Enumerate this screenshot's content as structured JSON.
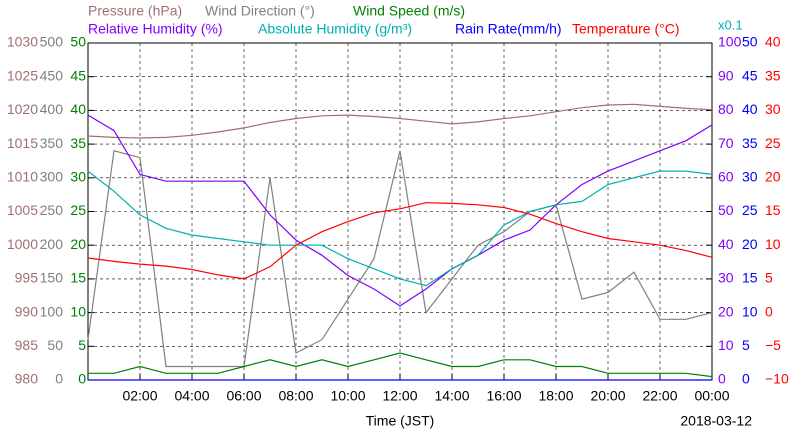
{
  "chart_data": {
    "type": "line",
    "xlabel": "Time (JST)",
    "date_label": "2018-03-12",
    "annotation": "x0.1",
    "annotation_color": "#00b0b0",
    "grid": true,
    "x": [
      0,
      1,
      2,
      3,
      4,
      5,
      6,
      7,
      8,
      9,
      10,
      11,
      12,
      13,
      14,
      15,
      16,
      17,
      18,
      19,
      20,
      21,
      22,
      23,
      24
    ],
    "xlim": [
      0,
      24
    ],
    "xticks": [
      {
        "value": 2,
        "label": "02:00"
      },
      {
        "value": 4,
        "label": "04:00"
      },
      {
        "value": 6,
        "label": "06:00"
      },
      {
        "value": 8,
        "label": "08:00"
      },
      {
        "value": 10,
        "label": "10:00"
      },
      {
        "value": 12,
        "label": "12:00"
      },
      {
        "value": 14,
        "label": "14:00"
      },
      {
        "value": 16,
        "label": "16:00"
      },
      {
        "value": 18,
        "label": "18:00"
      },
      {
        "value": 20,
        "label": "20:00"
      },
      {
        "value": 22,
        "label": "22:00"
      },
      {
        "value": 24,
        "label": "00:00"
      }
    ],
    "axes": [
      {
        "side": "left",
        "color": "#a07070",
        "lim": [
          980,
          1030
        ],
        "ticks": [
          980,
          985,
          990,
          995,
          1000,
          1005,
          1010,
          1015,
          1020,
          1025,
          1030
        ]
      },
      {
        "side": "left",
        "color": "#808080",
        "lim": [
          0,
          500
        ],
        "ticks": [
          0,
          50,
          100,
          150,
          200,
          250,
          300,
          350,
          400,
          450,
          500
        ]
      },
      {
        "side": "left",
        "color": "#008000",
        "lim": [
          0,
          50
        ],
        "ticks": [
          0,
          5,
          10,
          15,
          20,
          25,
          30,
          35,
          40,
          45,
          50
        ]
      },
      {
        "side": "right",
        "color": "#8000ff",
        "lim": [
          0,
          100
        ],
        "ticks": [
          0,
          10,
          20,
          30,
          40,
          50,
          60,
          70,
          80,
          90,
          100
        ]
      },
      {
        "side": "right",
        "color": "#0000ff",
        "lim": [
          0,
          50
        ],
        "ticks": [
          0,
          5,
          10,
          15,
          20,
          25,
          30,
          35,
          40,
          45,
          50
        ]
      },
      {
        "side": "right",
        "color": "#ff0000",
        "lim": [
          -10,
          40
        ],
        "ticks": [
          {
            "value": -10,
            "label": "−10"
          },
          {
            "value": -5,
            "label": "−5"
          },
          0,
          5,
          10,
          15,
          20,
          25,
          30,
          35,
          40
        ]
      },
      {
        "side": "none",
        "color": "#00b0b0",
        "lim": [
          0,
          10
        ]
      }
    ],
    "series": [
      {
        "name": "Pressure (hPa)",
        "color": "#a07070",
        "axis": 0,
        "values": [
          1016.2,
          1016,
          1015.9,
          1016,
          1016.3,
          1016.8,
          1017.4,
          1018.2,
          1018.8,
          1019.2,
          1019.3,
          1019.1,
          1018.8,
          1018.4,
          1018,
          1018.3,
          1018.8,
          1019.2,
          1019.8,
          1020.4,
          1020.8,
          1020.9,
          1020.6,
          1020.3,
          1020.1
        ]
      },
      {
        "name": "Wind Direction (°)",
        "color": "#808080",
        "axis": 1,
        "values": [
          60,
          340,
          330,
          20,
          20,
          20,
          20,
          300,
          40,
          60,
          120,
          180,
          340,
          100,
          150,
          200,
          220,
          250,
          260,
          120,
          130,
          160,
          90,
          90,
          100
        ]
      },
      {
        "name": "Wind Speed (m/s)",
        "color": "#008000",
        "axis": 2,
        "values": [
          1,
          1,
          2,
          1,
          1,
          1,
          2,
          3,
          2,
          3,
          2,
          3,
          4,
          3,
          2,
          2,
          3,
          3,
          2,
          2,
          1,
          1,
          1,
          1,
          0.5
        ]
      },
      {
        "name": "Relative Humidity (%)",
        "color": "#8000ff",
        "axis": 3,
        "values": [
          78.6,
          74,
          61,
          59,
          59,
          59,
          59,
          49,
          41.5,
          37,
          31,
          27,
          22,
          27,
          33,
          37,
          41.5,
          44.5,
          52,
          58,
          62,
          65,
          68,
          71,
          75.7
        ]
      },
      {
        "name": "Absolute Humidity (g/m³)",
        "color": "#00b0b0",
        "axis": 6,
        "values": [
          6.2,
          5.6,
          4.9,
          4.5,
          4.3,
          4.2,
          4.1,
          4.0,
          4.0,
          4.0,
          3.6,
          3.3,
          3.0,
          2.8,
          3.3,
          3.7,
          4.6,
          5.0,
          5.2,
          5.3,
          5.8,
          6.0,
          6.2,
          6.2,
          6.1
        ]
      },
      {
        "name": "Rain Rate(mm/h)",
        "color": "#0000ff",
        "axis": 4,
        "values": [
          0,
          0,
          0,
          0,
          0,
          0,
          0,
          0,
          0,
          0,
          0,
          0,
          0,
          0,
          0,
          0,
          0,
          0,
          0,
          0,
          0,
          0,
          0,
          0,
          0
        ]
      },
      {
        "name": "Temperature (°C)",
        "color": "#ff0000",
        "axis": 5,
        "values": [
          8.1,
          7.6,
          7.2,
          6.9,
          6.4,
          5.6,
          5.0,
          6.8,
          10,
          12,
          13.5,
          14.8,
          15.4,
          16.3,
          16.2,
          16,
          15.6,
          14.6,
          13.2,
          12,
          11,
          10.5,
          10,
          9.2,
          8.2
        ]
      }
    ]
  }
}
